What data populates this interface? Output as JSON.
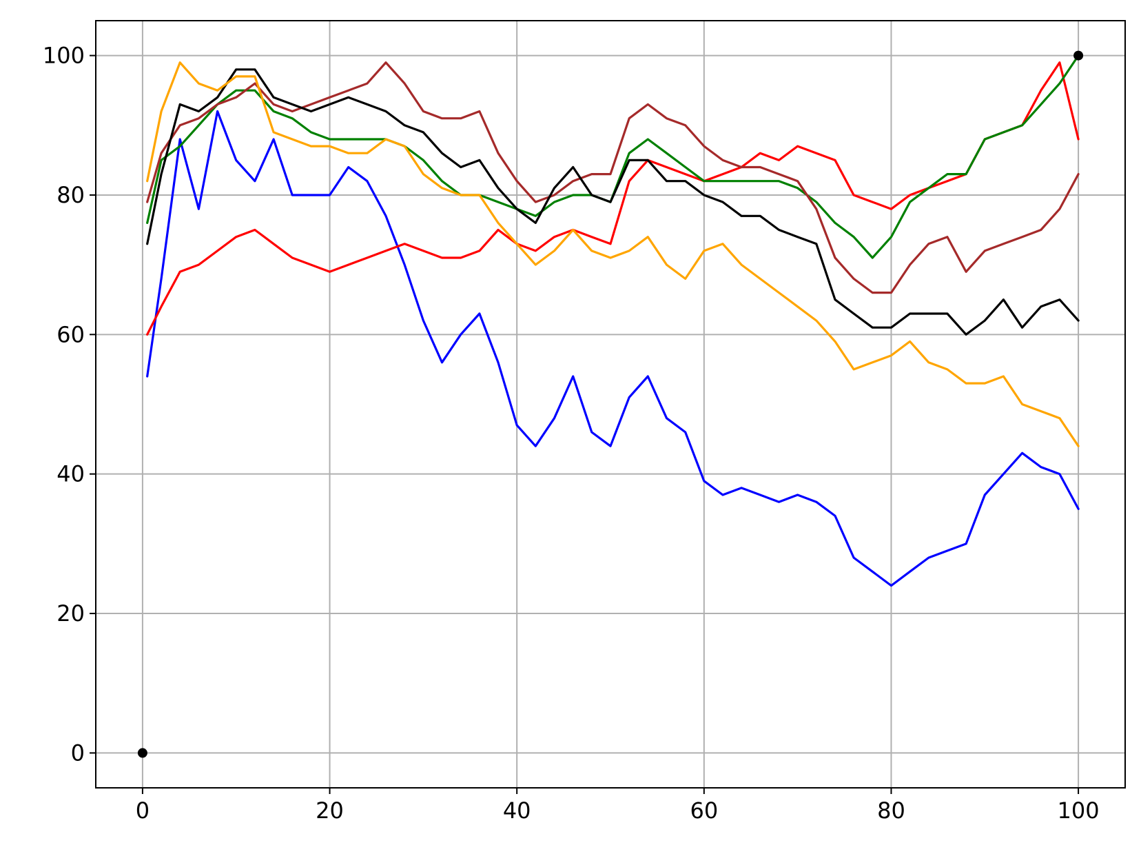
{
  "chart_data": {
    "type": "line",
    "title": "",
    "xlabel": "",
    "ylabel": "",
    "xlim": [
      -5,
      105
    ],
    "ylim": [
      -5,
      105
    ],
    "grid": true,
    "x_ticks": [
      0,
      20,
      40,
      60,
      80,
      100
    ],
    "y_ticks": [
      0,
      20,
      40,
      60,
      80,
      100
    ],
    "x_tick_labels": [
      "0",
      "20",
      "40",
      "60",
      "80",
      "100"
    ],
    "y_tick_labels": [
      "0",
      "20",
      "40",
      "60",
      "80",
      "100"
    ],
    "x": [
      0.5,
      2,
      4,
      6,
      8,
      10,
      12,
      14,
      16,
      18,
      20,
      22,
      24,
      26,
      28,
      30,
      32,
      34,
      36,
      38,
      40,
      42,
      44,
      46,
      48,
      50,
      52,
      54,
      56,
      58,
      60,
      62,
      64,
      66,
      68,
      70,
      72,
      74,
      76,
      78,
      80,
      82,
      84,
      86,
      88,
      90,
      92,
      94,
      96,
      98,
      100
    ],
    "series": [
      {
        "color": "#0000ff",
        "values": [
          54,
          68,
          88,
          78,
          92,
          85,
          82,
          88,
          80,
          80,
          80,
          84,
          82,
          77,
          70,
          62,
          56,
          60,
          63,
          56,
          47,
          44,
          48,
          54,
          46,
          44,
          51,
          54,
          48,
          46,
          39,
          37,
          38,
          37,
          36,
          37,
          36,
          34,
          28,
          26,
          24,
          26,
          28,
          29,
          30,
          37,
          40,
          43,
          41,
          40,
          35
        ]
      },
      {
        "color": "#ff0000",
        "values": [
          60,
          64,
          69,
          70,
          72,
          74,
          75,
          73,
          71,
          70,
          69,
          70,
          71,
          72,
          73,
          72,
          71,
          71,
          72,
          75,
          73,
          72,
          74,
          75,
          74,
          73,
          82,
          85,
          84,
          83,
          82,
          83,
          84,
          86,
          85,
          87,
          86,
          85,
          80,
          79,
          78,
          80,
          81,
          82,
          83,
          88,
          89,
          90,
          95,
          99,
          88
        ]
      },
      {
        "color": "#008000",
        "values": [
          76,
          85,
          87,
          90,
          93,
          95,
          95,
          92,
          91,
          89,
          88,
          88,
          88,
          88,
          87,
          85,
          82,
          80,
          80,
          79,
          78,
          77,
          79,
          80,
          80,
          79,
          86,
          88,
          86,
          84,
          82,
          82,
          82,
          82,
          82,
          81,
          79,
          76,
          74,
          71,
          74,
          79,
          81,
          83,
          83,
          88,
          89,
          90,
          93,
          96,
          100
        ]
      },
      {
        "color": "#a52a2a",
        "values": [
          79,
          86,
          90,
          91,
          93,
          94,
          96,
          93,
          92,
          93,
          94,
          95,
          96,
          99,
          96,
          92,
          91,
          91,
          92,
          86,
          82,
          79,
          80,
          82,
          83,
          83,
          91,
          93,
          91,
          90,
          87,
          85,
          84,
          84,
          83,
          82,
          78,
          71,
          68,
          66,
          66,
          70,
          73,
          74,
          69,
          72,
          73,
          74,
          75,
          78,
          83
        ]
      },
      {
        "color": "#000000",
        "values": [
          73,
          83,
          93,
          92,
          94,
          98,
          98,
          94,
          93,
          92,
          93,
          94,
          93,
          92,
          90,
          89,
          86,
          84,
          85,
          81,
          78,
          76,
          81,
          84,
          80,
          79,
          85,
          85,
          82,
          82,
          80,
          79,
          77,
          77,
          75,
          74,
          73,
          65,
          63,
          61,
          61,
          63,
          63,
          63,
          60,
          62,
          65,
          61,
          64,
          65,
          62
        ]
      },
      {
        "color": "#ffa500",
        "values": [
          82,
          92,
          99,
          96,
          95,
          97,
          97,
          89,
          88,
          87,
          87,
          86,
          86,
          88,
          87,
          83,
          81,
          80,
          80,
          76,
          73,
          70,
          72,
          75,
          72,
          71,
          72,
          74,
          70,
          68,
          72,
          73,
          70,
          68,
          66,
          64,
          62,
          59,
          55,
          56,
          57,
          59,
          56,
          55,
          53,
          53,
          54,
          50,
          49,
          48,
          44
        ]
      }
    ],
    "points": [
      {
        "x": 0,
        "y": 0
      },
      {
        "x": 100,
        "y": 100
      }
    ]
  }
}
